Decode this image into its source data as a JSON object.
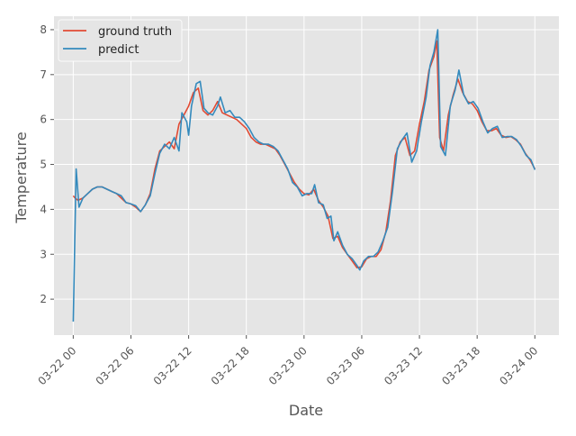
{
  "chart_data": {
    "type": "line",
    "xlabel": "Date",
    "ylabel": "Temperature",
    "x_tick_labels": [
      "03-22 00",
      "03-22 06",
      "03-22 12",
      "03-22 18",
      "03-23 00",
      "03-23 06",
      "03-23 12",
      "03-23 18",
      "03-24 00"
    ],
    "x_ticks_hours": [
      0,
      6,
      12,
      18,
      24,
      30,
      36,
      42,
      48
    ],
    "y_tick_labels": [
      "2",
      "3",
      "4",
      "5",
      "6",
      "7",
      "8"
    ],
    "y_ticks": [
      2,
      3,
      4,
      5,
      6,
      7,
      8
    ],
    "xlim_hours": [
      -2,
      50.5
    ],
    "ylim": [
      1.2,
      8.3
    ],
    "grid": true,
    "legend_position": "top-left",
    "series": [
      {
        "name": "ground truth",
        "color": "#E24A33",
        "points": [
          [
            0.0,
            4.3
          ],
          [
            0.2,
            4.25
          ],
          [
            0.5,
            4.2
          ],
          [
            1.0,
            4.25
          ],
          [
            1.5,
            4.35
          ],
          [
            2.0,
            4.45
          ],
          [
            2.5,
            4.5
          ],
          [
            3.0,
            4.5
          ],
          [
            3.5,
            4.45
          ],
          [
            4.0,
            4.4
          ],
          [
            4.5,
            4.35
          ],
          [
            5.0,
            4.25
          ],
          [
            5.5,
            4.15
          ],
          [
            6.0,
            4.12
          ],
          [
            6.5,
            4.05
          ],
          [
            7.0,
            3.95
          ],
          [
            7.5,
            4.1
          ],
          [
            8.0,
            4.35
          ],
          [
            8.5,
            4.9
          ],
          [
            9.0,
            5.3
          ],
          [
            9.5,
            5.4
          ],
          [
            10.0,
            5.5
          ],
          [
            10.5,
            5.35
          ],
          [
            11.0,
            5.9
          ],
          [
            11.5,
            6.1
          ],
          [
            12.0,
            6.3
          ],
          [
            12.5,
            6.6
          ],
          [
            13.0,
            6.7
          ],
          [
            13.5,
            6.2
          ],
          [
            14.0,
            6.1
          ],
          [
            14.5,
            6.2
          ],
          [
            15.0,
            6.4
          ],
          [
            15.5,
            6.15
          ],
          [
            16.0,
            6.1
          ],
          [
            16.5,
            6.05
          ],
          [
            17.0,
            6.0
          ],
          [
            17.5,
            5.9
          ],
          [
            18.0,
            5.8
          ],
          [
            18.5,
            5.6
          ],
          [
            19.0,
            5.5
          ],
          [
            19.5,
            5.45
          ],
          [
            20.0,
            5.45
          ],
          [
            20.5,
            5.4
          ],
          [
            21.0,
            5.35
          ],
          [
            21.5,
            5.2
          ],
          [
            22.0,
            5.0
          ],
          [
            22.5,
            4.8
          ],
          [
            23.0,
            4.6
          ],
          [
            23.5,
            4.45
          ],
          [
            24.0,
            4.35
          ],
          [
            24.5,
            4.32
          ],
          [
            25.0,
            4.45
          ],
          [
            25.5,
            4.2
          ],
          [
            26.0,
            4.05
          ],
          [
            26.5,
            3.85
          ],
          [
            27.0,
            3.35
          ],
          [
            27.5,
            3.4
          ],
          [
            28.0,
            3.15
          ],
          [
            28.5,
            3.0
          ],
          [
            29.0,
            2.85
          ],
          [
            29.5,
            2.7
          ],
          [
            30.0,
            2.72
          ],
          [
            30.5,
            2.9
          ],
          [
            31.0,
            2.95
          ],
          [
            31.5,
            2.95
          ],
          [
            32.0,
            3.1
          ],
          [
            32.5,
            3.5
          ],
          [
            33.0,
            4.2
          ],
          [
            33.5,
            5.2
          ],
          [
            34.0,
            5.5
          ],
          [
            34.5,
            5.6
          ],
          [
            35.0,
            5.2
          ],
          [
            35.5,
            5.3
          ],
          [
            36.0,
            5.9
          ],
          [
            36.5,
            6.4
          ],
          [
            37.0,
            7.1
          ],
          [
            37.5,
            7.4
          ],
          [
            37.8,
            7.75
          ],
          [
            38.1,
            5.6
          ],
          [
            38.5,
            5.3
          ],
          [
            39.0,
            6.1
          ],
          [
            39.5,
            6.55
          ],
          [
            40.0,
            6.9
          ],
          [
            40.5,
            6.6
          ],
          [
            41.0,
            6.4
          ],
          [
            41.5,
            6.35
          ],
          [
            42.0,
            6.2
          ],
          [
            42.5,
            5.95
          ],
          [
            43.0,
            5.75
          ],
          [
            43.5,
            5.75
          ],
          [
            44.0,
            5.8
          ],
          [
            44.5,
            5.65
          ],
          [
            45.0,
            5.6
          ],
          [
            45.5,
            5.62
          ],
          [
            46.0,
            5.55
          ],
          [
            46.5,
            5.45
          ],
          [
            47.0,
            5.25
          ],
          [
            47.5,
            5.1
          ],
          [
            48.0,
            4.9
          ]
        ]
      },
      {
        "name": "predict",
        "color": "#348ABD",
        "points": [
          [
            0.0,
            1.5
          ],
          [
            0.3,
            4.9
          ],
          [
            0.6,
            4.05
          ],
          [
            1.0,
            4.25
          ],
          [
            1.5,
            4.35
          ],
          [
            2.0,
            4.45
          ],
          [
            2.5,
            4.5
          ],
          [
            3.0,
            4.5
          ],
          [
            3.5,
            4.45
          ],
          [
            4.0,
            4.4
          ],
          [
            4.5,
            4.35
          ],
          [
            5.0,
            4.3
          ],
          [
            5.5,
            4.15
          ],
          [
            6.0,
            4.12
          ],
          [
            6.5,
            4.08
          ],
          [
            7.0,
            3.95
          ],
          [
            7.5,
            4.1
          ],
          [
            8.0,
            4.3
          ],
          [
            8.5,
            4.8
          ],
          [
            9.0,
            5.25
          ],
          [
            9.5,
            5.45
          ],
          [
            10.0,
            5.35
          ],
          [
            10.5,
            5.6
          ],
          [
            11.0,
            5.3
          ],
          [
            11.3,
            6.15
          ],
          [
            11.8,
            5.95
          ],
          [
            12.0,
            5.65
          ],
          [
            12.3,
            6.3
          ],
          [
            12.8,
            6.8
          ],
          [
            13.2,
            6.85
          ],
          [
            13.6,
            6.25
          ],
          [
            14.0,
            6.15
          ],
          [
            14.5,
            6.1
          ],
          [
            15.0,
            6.3
          ],
          [
            15.3,
            6.5
          ],
          [
            15.8,
            6.15
          ],
          [
            16.3,
            6.2
          ],
          [
            16.8,
            6.05
          ],
          [
            17.3,
            6.05
          ],
          [
            17.8,
            5.95
          ],
          [
            18.3,
            5.8
          ],
          [
            18.8,
            5.6
          ],
          [
            19.3,
            5.5
          ],
          [
            19.8,
            5.45
          ],
          [
            20.3,
            5.45
          ],
          [
            20.8,
            5.4
          ],
          [
            21.3,
            5.3
          ],
          [
            21.8,
            5.1
          ],
          [
            22.3,
            4.9
          ],
          [
            22.8,
            4.6
          ],
          [
            23.3,
            4.5
          ],
          [
            23.8,
            4.3
          ],
          [
            24.3,
            4.35
          ],
          [
            24.8,
            4.35
          ],
          [
            25.1,
            4.55
          ],
          [
            25.5,
            4.15
          ],
          [
            26.0,
            4.1
          ],
          [
            26.4,
            3.8
          ],
          [
            26.8,
            3.85
          ],
          [
            27.1,
            3.3
          ],
          [
            27.5,
            3.5
          ],
          [
            28.0,
            3.2
          ],
          [
            28.5,
            3.0
          ],
          [
            29.0,
            2.9
          ],
          [
            29.5,
            2.75
          ],
          [
            29.8,
            2.65
          ],
          [
            30.2,
            2.85
          ],
          [
            30.7,
            2.95
          ],
          [
            31.2,
            2.95
          ],
          [
            31.7,
            3.05
          ],
          [
            32.2,
            3.3
          ],
          [
            32.7,
            3.6
          ],
          [
            33.2,
            4.4
          ],
          [
            33.7,
            5.35
          ],
          [
            34.2,
            5.55
          ],
          [
            34.7,
            5.7
          ],
          [
            35.2,
            5.05
          ],
          [
            35.7,
            5.3
          ],
          [
            36.2,
            5.95
          ],
          [
            36.7,
            6.5
          ],
          [
            37.1,
            7.2
          ],
          [
            37.5,
            7.5
          ],
          [
            37.9,
            8.0
          ],
          [
            38.2,
            5.4
          ],
          [
            38.7,
            5.2
          ],
          [
            39.2,
            6.3
          ],
          [
            39.7,
            6.65
          ],
          [
            40.1,
            7.1
          ],
          [
            40.6,
            6.55
          ],
          [
            41.1,
            6.35
          ],
          [
            41.6,
            6.4
          ],
          [
            42.1,
            6.25
          ],
          [
            42.6,
            5.95
          ],
          [
            43.1,
            5.7
          ],
          [
            43.6,
            5.8
          ],
          [
            44.1,
            5.85
          ],
          [
            44.6,
            5.6
          ],
          [
            45.1,
            5.62
          ],
          [
            45.6,
            5.62
          ],
          [
            46.1,
            5.55
          ],
          [
            46.6,
            5.4
          ],
          [
            47.1,
            5.2
          ],
          [
            47.6,
            5.1
          ],
          [
            48.0,
            4.88
          ]
        ]
      }
    ]
  }
}
